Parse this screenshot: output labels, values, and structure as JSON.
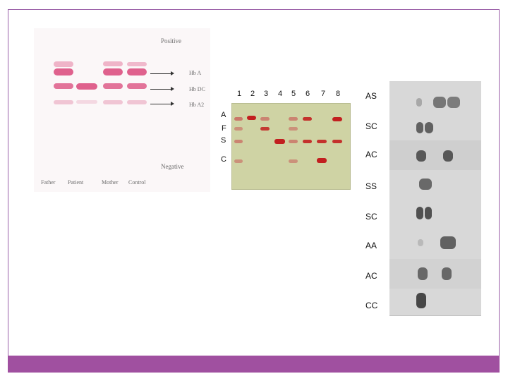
{
  "colors": {
    "frame_border": "#9a5fa8",
    "bottom_bar": "#a050a0",
    "left_gel_band": "#d9477a",
    "middle_gel_background": "#cfd3a4",
    "middle_gel_band": "#c21f1f",
    "right_gel_band": "#3a3a3a"
  },
  "left_gel": {
    "positive_label": "Positive",
    "negative_label": "Negative",
    "band_labels": [
      "Hb A",
      "Hb DC",
      "Hb A2"
    ],
    "lane_labels": [
      "Father",
      "Patient",
      "Mother",
      "Control"
    ]
  },
  "middle_gel": {
    "lane_numbers": [
      "1",
      "2",
      "3",
      "4",
      "5",
      "6",
      "7",
      "8"
    ],
    "row_labels": [
      "A",
      "F",
      "S",
      "C"
    ]
  },
  "right_gel": {
    "row_labels": [
      "AS",
      "SC",
      "AC",
      "SS",
      "SC",
      "AA",
      "AC",
      "CC"
    ]
  }
}
